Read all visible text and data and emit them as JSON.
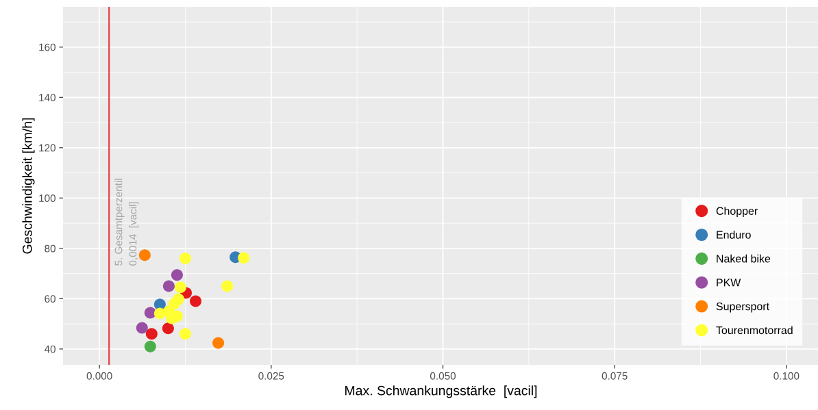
{
  "chart_data": {
    "type": "scatter",
    "xlabel": "Max. Schwankungsstärke  [vacil]",
    "ylabel": "Geschwindigkeit [km/h]",
    "xlim": [
      -0.0053,
      0.1047
    ],
    "ylim": [
      33.7,
      176
    ],
    "xticks": [
      {
        "value": 0,
        "label": "0.000"
      },
      {
        "value": 0.025,
        "label": "0.025"
      },
      {
        "value": 0.05,
        "label": "0.050"
      },
      {
        "value": 0.075,
        "label": "0.075"
      },
      {
        "value": 0.1,
        "label": "0.100"
      }
    ],
    "yticks": [
      40,
      60,
      80,
      100,
      120,
      140,
      160
    ],
    "grid": true,
    "legend": "right",
    "marker": "circle",
    "ref_lines": [
      {
        "axis": "x",
        "value": 0.0014,
        "label": "5. Gesamtperzentil\n0,0014  [vacil]",
        "color": "#e8383d"
      }
    ],
    "series": [
      {
        "name": "Chopper",
        "color": "#e41a1c",
        "x": [
          0.0076,
          0.01,
          0.0126,
          0.014
        ],
        "values": [
          46,
          48.2,
          62.3,
          59
        ]
      },
      {
        "name": "Enduro",
        "color": "#377eb8",
        "x": [
          0.0198,
          0.0088
        ],
        "values": [
          76.5,
          57.7
        ]
      },
      {
        "name": "Naked bike",
        "color": "#4daf4a",
        "x": [
          0.0074
        ],
        "values": [
          41
        ]
      },
      {
        "name": "PKW",
        "color": "#984ea3",
        "x": [
          0.0062,
          0.0074,
          0.0101,
          0.0113
        ],
        "values": [
          48.4,
          54.4,
          65,
          69.4
        ]
      },
      {
        "name": "Supersport",
        "color": "#ff7f00",
        "x": [
          0.0066,
          0.0173
        ],
        "values": [
          77.3,
          42.4
        ]
      },
      {
        "name": "Tourenmotorrad",
        "color": "#ffff33",
        "x": [
          0.0125,
          0.021,
          0.0186,
          0.0118,
          0.0125,
          0.0088,
          0.0109,
          0.0113,
          0.0115,
          0.0105,
          0.0101
        ],
        "values": [
          76,
          76.2,
          65,
          64.5,
          46,
          54.1,
          58,
          53,
          59.8,
          52.2,
          55
        ]
      }
    ]
  }
}
